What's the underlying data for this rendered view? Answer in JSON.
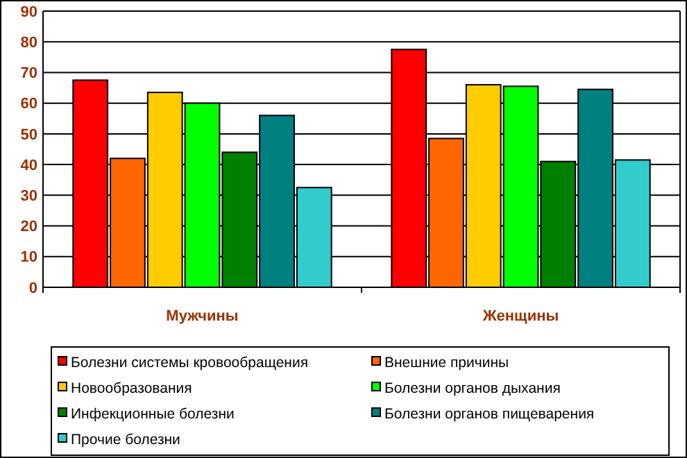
{
  "chart_data": {
    "type": "bar",
    "categories": [
      "Мужчины",
      "Женщины"
    ],
    "series": [
      {
        "name": "Болезни системы кровообращения",
        "color": "#ff0000",
        "values": [
          67.5,
          77.5
        ]
      },
      {
        "name": "Внешние причины",
        "color": "#ff6600",
        "values": [
          42,
          48.5
        ]
      },
      {
        "name": "Новообразования",
        "color": "#ffcc00",
        "values": [
          63.5,
          66
        ]
      },
      {
        "name": "Болезни органов дыхания",
        "color": "#00ff00",
        "values": [
          60,
          65.5
        ]
      },
      {
        "name": "Инфекционные болезни",
        "color": "#008000",
        "values": [
          44,
          41
        ]
      },
      {
        "name": "Болезни органов пищеварения",
        "color": "#008080",
        "values": [
          56,
          64.5
        ]
      },
      {
        "name": "Прочие болезни",
        "color": "#33cccc",
        "values": [
          32.5,
          41.5
        ]
      }
    ],
    "ylim": [
      0,
      90
    ],
    "yticks": [
      0,
      10,
      20,
      30,
      40,
      50,
      60,
      70,
      80,
      90
    ],
    "grid": "y",
    "legend": "bottom"
  }
}
